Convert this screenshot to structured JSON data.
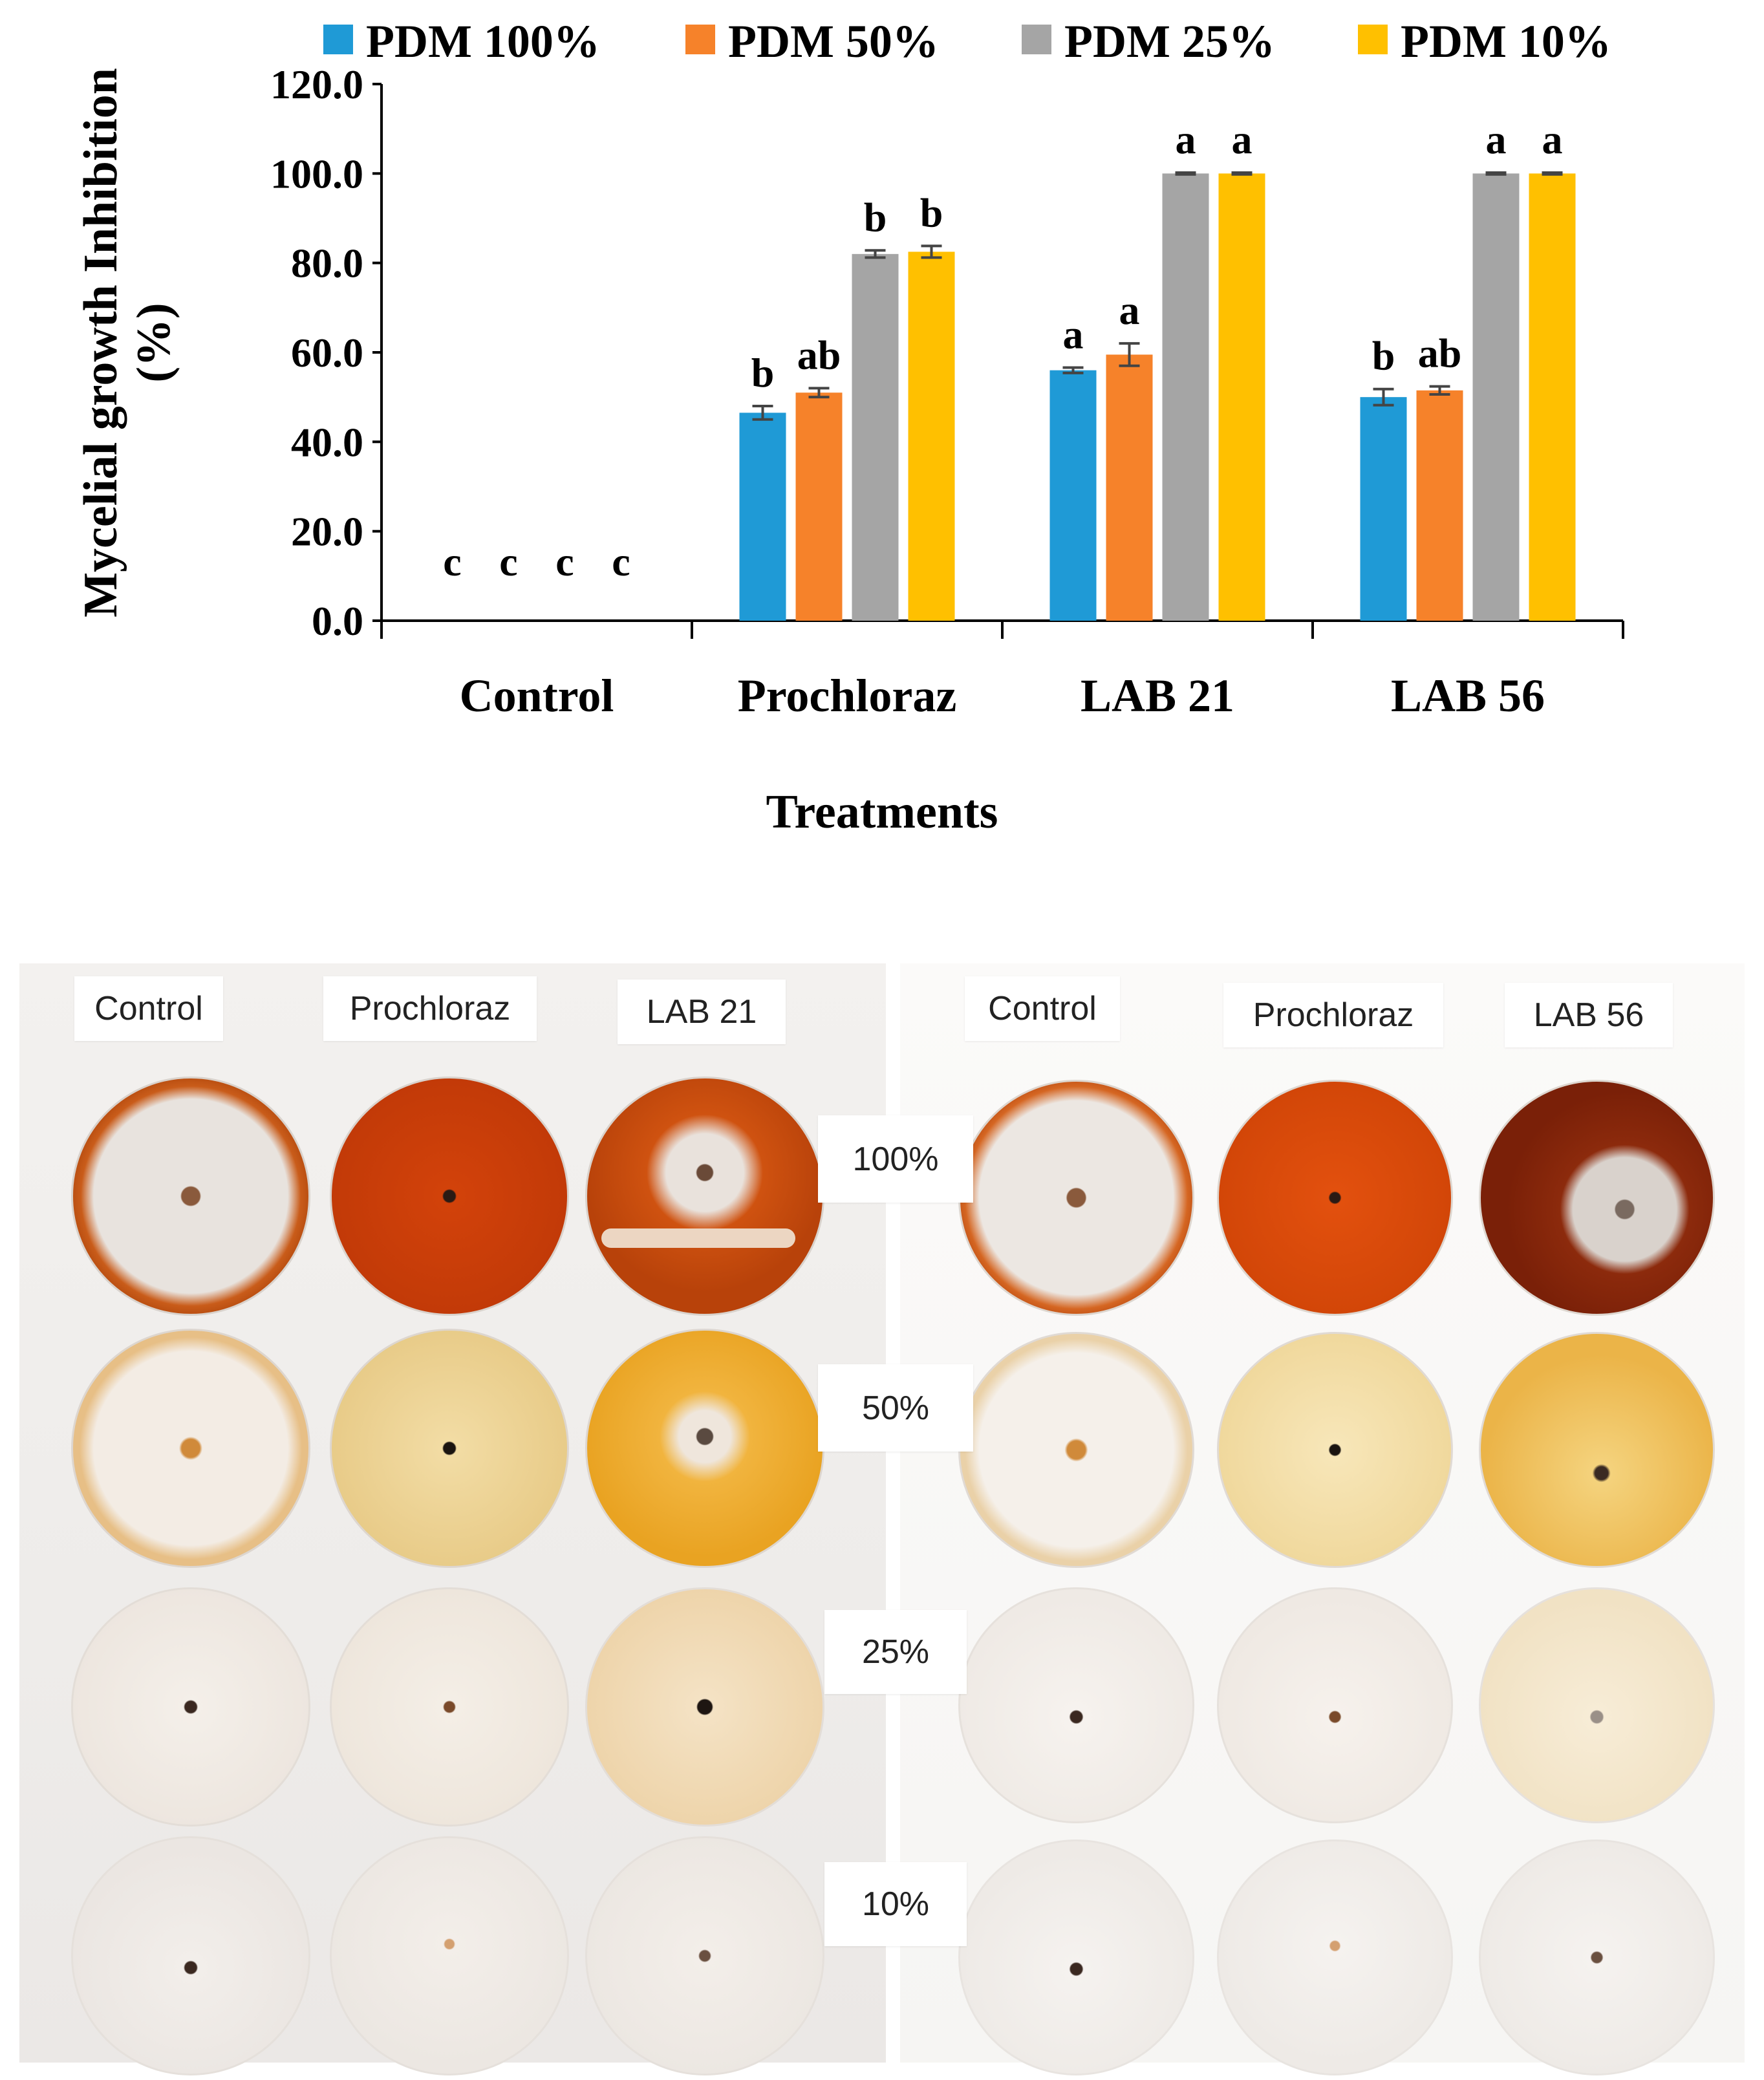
{
  "chart_data": {
    "type": "bar",
    "categories": [
      "Control",
      "Prochloraz",
      "LAB 21",
      "LAB 56"
    ],
    "series": [
      {
        "name": "PDM 100%",
        "color": "#1f9ad6",
        "values": [
          0.0,
          46.5,
          56.0,
          50.0
        ],
        "errors": [
          0,
          1.5,
          0.6,
          1.8
        ],
        "letters": [
          "c",
          "b",
          "a",
          "b"
        ]
      },
      {
        "name": "PDM 50%",
        "color": "#f6822a",
        "values": [
          0.0,
          51.0,
          59.5,
          51.5
        ],
        "errors": [
          0,
          1.0,
          2.5,
          0.9
        ],
        "letters": [
          "c",
          "ab",
          "a",
          "ab"
        ]
      },
      {
        "name": "PDM 25%",
        "color": "#a5a5a5",
        "values": [
          0.0,
          82.0,
          100.0,
          100.0
        ],
        "errors": [
          0,
          0.8,
          0.2,
          0.2
        ],
        "letters": [
          "c",
          "b",
          "a",
          "a"
        ]
      },
      {
        "name": "PDM 10%",
        "color": "#ffc000",
        "values": [
          0.0,
          82.5,
          100.0,
          100.0
        ],
        "errors": [
          0,
          1.3,
          0.2,
          0.2
        ],
        "letters": [
          "c",
          "b",
          "a",
          "a"
        ]
      }
    ],
    "xlabel": "Treatments",
    "ylabel_line1": "Mycelial growth Inhibition",
    "ylabel_line2": "(%)",
    "ylim": [
      0,
      120
    ],
    "yticks": [
      "0.0",
      "20.0",
      "40.0",
      "60.0",
      "80.0",
      "100.0",
      "120.0"
    ],
    "grid": false,
    "legend_position": "top"
  },
  "photo": {
    "left_panel": {
      "headers": [
        "Control",
        "Prochloraz",
        "LAB 21"
      ]
    },
    "right_panel": {
      "headers": [
        "Control",
        "Prochloraz",
        "LAB 56"
      ]
    },
    "row_labels": [
      "100%",
      "50%",
      "25%",
      "10%"
    ]
  }
}
